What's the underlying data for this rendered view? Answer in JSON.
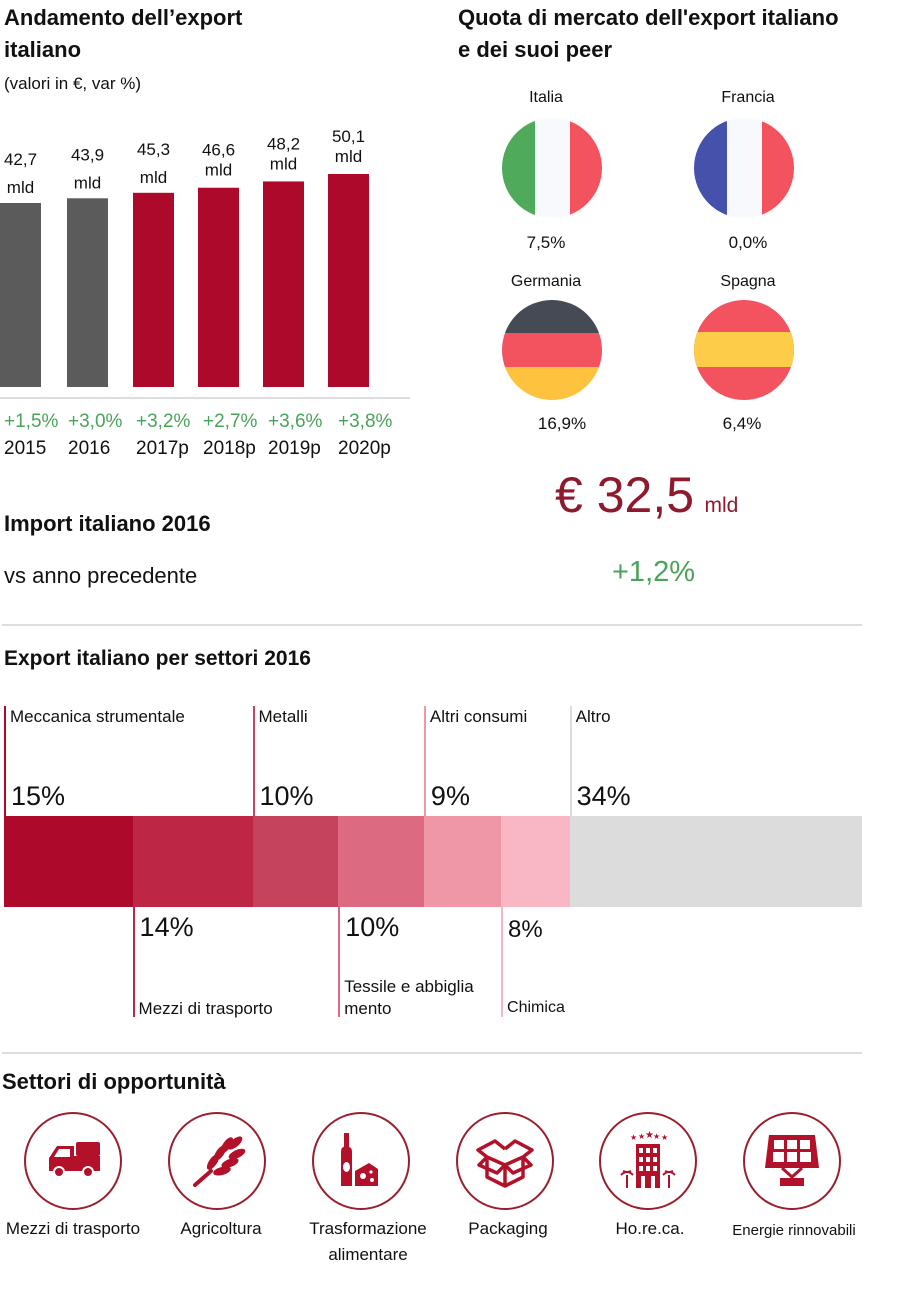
{
  "export_trend": {
    "title_line1": "Andamento dell’export",
    "title_line2": "italiano",
    "subtitle": "(valori in €, var %)"
  },
  "market_share": {
    "title_line1": "Quota di mercato dell'export italiano",
    "title_line2": "e dei suoi peer",
    "countries": [
      {
        "name": "Italia",
        "value": "7,5%",
        "flag": "italy-flag"
      },
      {
        "name": "Francia",
        "value": "0,0%",
        "flag": "france-flag"
      },
      {
        "name": "Germania",
        "value": "16,9%",
        "flag": "germany-flag"
      },
      {
        "name": "Spagna",
        "value": "6,4%",
        "flag": "spain-flag"
      }
    ]
  },
  "import": {
    "title": "Import italiano 2016",
    "subtitle": "vs anno precedente",
    "amount": "€ 32,5",
    "unit": "mld",
    "change": "+1,2%"
  },
  "sectors_title": "Export italiano per settori 2016",
  "opportunities": {
    "title": "Settori di opportunità",
    "items": [
      {
        "label_line1": "Mezzi di trasporto",
        "label_line2": "",
        "icon": "truck-icon"
      },
      {
        "label_line1": "Agricoltura",
        "label_line2": "",
        "icon": "wheat-icon"
      },
      {
        "label_line1": "Trasformazione",
        "label_line2": "alimentare",
        "icon": "wine-cheese-icon"
      },
      {
        "label_line1": "Packaging",
        "label_line2": "",
        "icon": "box-icon"
      },
      {
        "label_line1": "Ho.re.ca.",
        "label_line2": "",
        "icon": "hotel-icon"
      },
      {
        "label_line1": "Energie rinnovabili",
        "label_line2": "",
        "icon": "solar-panel-icon"
      }
    ]
  },
  "colors": {
    "accent": "#ad0a2b",
    "actual_bar": "#5b5b5b",
    "positive": "#4aa35a",
    "import_amount": "#8e1b2d",
    "icon": "#b3102a"
  },
  "chart_data": [
    {
      "type": "bar",
      "title": "Andamento dell’export italiano",
      "subtitle": "(valori in €, var %)",
      "categories": [
        "2015",
        "2016",
        "2017p",
        "2018p",
        "2019p",
        "2020p"
      ],
      "values": [
        42.7,
        43.9,
        45.3,
        46.6,
        48.2,
        50.1
      ],
      "value_labels": [
        {
          "num": "42,7",
          "unit": "mld"
        },
        {
          "num": "43,9",
          "unit": "mld"
        },
        {
          "num": "45,3",
          "unit": "mld"
        },
        {
          "num": "46,6",
          "unit": "mld"
        },
        {
          "num": "48,2",
          "unit": "mld"
        },
        {
          "num": "50,1",
          "unit": "mld"
        }
      ],
      "changes": [
        "+1,5%",
        "+3,0%",
        "+3,2%",
        "+2,7%",
        "+3,6%",
        "+3,8%"
      ],
      "bar_kind": [
        "actual",
        "actual",
        "forecast",
        "forecast",
        "forecast",
        "forecast"
      ],
      "xlabel": "",
      "ylabel": "",
      "grid": false
    },
    {
      "type": "bar",
      "orientation": "stacked-horizontal",
      "title": "Export italiano per settori 2016",
      "segments": [
        {
          "name": "Meccanica strumentale",
          "value": 15,
          "label": "15%",
          "color": "#ad0a2b",
          "label_pos": "top"
        },
        {
          "name": "Mezzi di trasporto",
          "value": 14,
          "label": "14%",
          "color": "#bd2745",
          "label_pos": "bottom"
        },
        {
          "name": "Metalli",
          "value": 10,
          "label": "10%",
          "color": "#c5435c",
          "label_pos": "top"
        },
        {
          "name": "Tessile e abbiglia mento",
          "value": 10,
          "label": "10%",
          "color": "#dc6a80",
          "label_pos": "bottom"
        },
        {
          "name": "Altri consumi",
          "value": 9,
          "label": "9%",
          "color": "#ef96a7",
          "label_pos": "top"
        },
        {
          "name": "Chimica",
          "value": 8,
          "label": "8%",
          "color": "#f9b7c5",
          "label_pos": "bottom"
        },
        {
          "name": "Altro",
          "value": 34,
          "label": "34%",
          "color": "#dcdcdc",
          "label_pos": "top"
        }
      ]
    }
  ]
}
